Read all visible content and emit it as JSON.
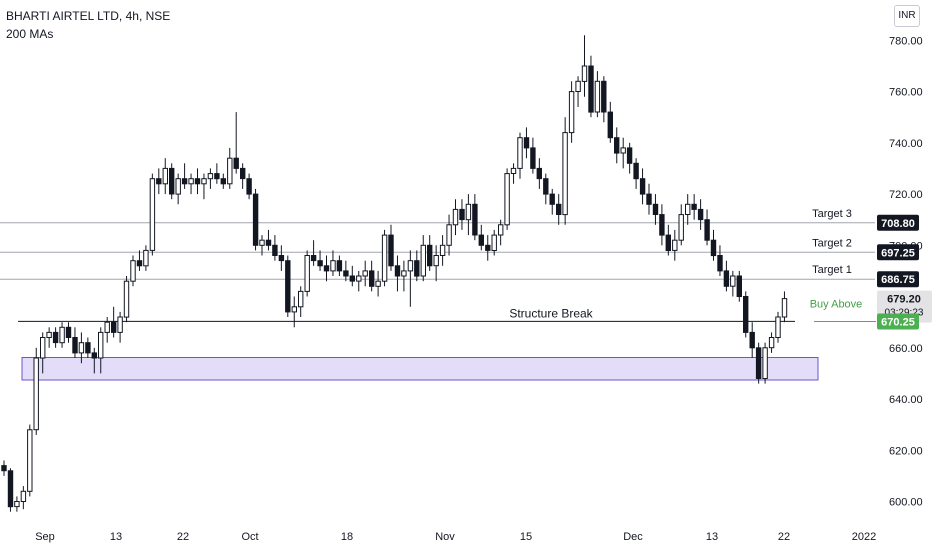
{
  "header": {
    "symbol_line": "BHARTI AIRTEL LTD, 4h, NSE",
    "indicator": "200 MAs"
  },
  "currency_button": "INR",
  "colors": {
    "up": "#ffffff",
    "down": "#131722",
    "wick": "#131722",
    "zone_fill": "#e3ddfa",
    "zone_stroke": "#6e54cf",
    "level_line": "#a3a6ae",
    "buy_line": "#4caf50",
    "buy_label": "#43a047",
    "price_badge": "#131722"
  },
  "chart_data": {
    "type": "candlestick",
    "title": "BHARTI AIRTEL LTD, 4h, NSE",
    "y_axis": {
      "ticks": [
        "600.00",
        "620.00",
        "640.00",
        "660.00",
        "680.00",
        "700.00",
        "720.00",
        "740.00",
        "760.00",
        "780.00"
      ],
      "ylim": [
        594,
        784
      ]
    },
    "x_axis": {
      "ticks": [
        "Sep",
        "13",
        "22",
        "Oct",
        "18",
        "Nov",
        "15",
        "Dec",
        "13",
        "22",
        "2022"
      ]
    },
    "grid": false,
    "levels": [
      {
        "name": "Target 3",
        "value": 708.8,
        "label": "708.80"
      },
      {
        "name": "Target 2",
        "value": 697.25,
        "label": "697.25"
      },
      {
        "name": "Target 1",
        "value": 686.75,
        "label": "686.75"
      }
    ],
    "structure_break": {
      "label": "Structure Break",
      "value": 670.3
    },
    "buy_above": {
      "label": "Buy Above",
      "value": 670.25,
      "badge": "670.25"
    },
    "last_price": {
      "value": "679.20",
      "countdown": "03:29:23"
    },
    "zone": {
      "from": 647.4,
      "to": 656.2
    },
    "candles": [
      [
        614,
        616,
        610,
        612
      ],
      [
        612,
        613,
        596,
        598
      ],
      [
        598,
        602,
        596,
        600
      ],
      [
        600,
        606,
        597,
        604
      ],
      [
        604,
        630,
        602,
        628
      ],
      [
        628,
        660,
        626,
        656
      ],
      [
        656,
        666,
        650,
        664
      ],
      [
        664,
        668,
        660,
        666
      ],
      [
        666,
        668,
        660,
        662
      ],
      [
        662,
        670,
        660,
        668
      ],
      [
        668,
        670,
        662,
        664
      ],
      [
        664,
        668,
        656,
        658
      ],
      [
        658,
        666,
        654,
        662
      ],
      [
        662,
        664,
        656,
        658
      ],
      [
        658,
        660,
        650,
        656
      ],
      [
        656,
        668,
        650,
        666
      ],
      [
        666,
        672,
        662,
        670
      ],
      [
        670,
        676,
        664,
        666
      ],
      [
        666,
        674,
        662,
        672
      ],
      [
        672,
        688,
        670,
        686
      ],
      [
        686,
        696,
        684,
        694
      ],
      [
        694,
        698,
        690,
        692
      ],
      [
        692,
        700,
        690,
        698
      ],
      [
        698,
        728,
        696,
        726
      ],
      [
        726,
        730,
        720,
        724
      ],
      [
        724,
        734,
        720,
        730
      ],
      [
        730,
        732,
        718,
        720
      ],
      [
        720,
        728,
        716,
        726
      ],
      [
        726,
        732,
        722,
        724
      ],
      [
        724,
        728,
        720,
        726
      ],
      [
        726,
        730,
        720,
        724
      ],
      [
        724,
        728,
        718,
        726
      ],
      [
        726,
        730,
        722,
        728
      ],
      [
        728,
        732,
        724,
        726
      ],
      [
        726,
        728,
        722,
        724
      ],
      [
        724,
        738,
        722,
        734
      ],
      [
        734,
        752,
        728,
        730
      ],
      [
        730,
        732,
        722,
        726
      ],
      [
        726,
        728,
        718,
        720
      ],
      [
        720,
        722,
        698,
        700
      ],
      [
        700,
        704,
        696,
        702
      ],
      [
        702,
        706,
        698,
        700
      ],
      [
        700,
        704,
        694,
        696
      ],
      [
        696,
        700,
        690,
        694
      ],
      [
        694,
        696,
        672,
        674
      ],
      [
        674,
        680,
        668,
        676
      ],
      [
        676,
        684,
        672,
        682
      ],
      [
        682,
        698,
        680,
        696
      ],
      [
        696,
        702,
        692,
        694
      ],
      [
        694,
        698,
        690,
        692
      ],
      [
        692,
        696,
        686,
        690
      ],
      [
        690,
        698,
        688,
        694
      ],
      [
        694,
        696,
        688,
        690
      ],
      [
        690,
        694,
        686,
        688
      ],
      [
        688,
        692,
        684,
        686
      ],
      [
        686,
        690,
        682,
        688
      ],
      [
        688,
        694,
        684,
        690
      ],
      [
        690,
        694,
        682,
        684
      ],
      [
        684,
        690,
        680,
        686
      ],
      [
        686,
        706,
        684,
        704
      ],
      [
        704,
        708,
        690,
        692
      ],
      [
        692,
        696,
        682,
        688
      ],
      [
        688,
        694,
        682,
        690
      ],
      [
        690,
        698,
        676,
        694
      ],
      [
        694,
        698,
        686,
        688
      ],
      [
        688,
        704,
        686,
        700
      ],
      [
        700,
        704,
        690,
        692
      ],
      [
        692,
        700,
        686,
        696
      ],
      [
        696,
        704,
        692,
        700
      ],
      [
        700,
        712,
        696,
        708
      ],
      [
        708,
        718,
        704,
        714
      ],
      [
        714,
        718,
        706,
        710
      ],
      [
        710,
        720,
        704,
        716
      ],
      [
        716,
        720,
        702,
        704
      ],
      [
        704,
        708,
        698,
        700
      ],
      [
        700,
        704,
        694,
        698
      ],
      [
        698,
        706,
        696,
        704
      ],
      [
        704,
        710,
        700,
        708
      ],
      [
        708,
        730,
        706,
        728
      ],
      [
        728,
        732,
        724,
        730
      ],
      [
        730,
        744,
        726,
        742
      ],
      [
        742,
        746,
        734,
        738
      ],
      [
        738,
        742,
        728,
        730
      ],
      [
        730,
        734,
        722,
        726
      ],
      [
        726,
        728,
        716,
        720
      ],
      [
        720,
        722,
        712,
        716
      ],
      [
        716,
        720,
        708,
        712
      ],
      [
        712,
        750,
        708,
        744
      ],
      [
        744,
        764,
        740,
        760
      ],
      [
        760,
        766,
        754,
        764
      ],
      [
        764,
        782,
        758,
        770
      ],
      [
        770,
        774,
        750,
        752
      ],
      [
        752,
        768,
        750,
        764
      ],
      [
        764,
        766,
        748,
        752
      ],
      [
        752,
        756,
        740,
        742
      ],
      [
        742,
        746,
        732,
        736
      ],
      [
        736,
        742,
        730,
        738
      ],
      [
        738,
        740,
        728,
        732
      ],
      [
        732,
        734,
        722,
        726
      ],
      [
        726,
        730,
        716,
        720
      ],
      [
        720,
        724,
        712,
        716
      ],
      [
        716,
        720,
        708,
        712
      ],
      [
        712,
        716,
        700,
        704
      ],
      [
        704,
        708,
        696,
        698
      ],
      [
        698,
        706,
        694,
        702
      ],
      [
        702,
        716,
        700,
        712
      ],
      [
        712,
        720,
        708,
        716
      ],
      [
        716,
        720,
        710,
        714
      ],
      [
        714,
        718,
        706,
        710
      ],
      [
        710,
        714,
        700,
        702
      ],
      [
        702,
        706,
        694,
        696
      ],
      [
        696,
        700,
        688,
        690
      ],
      [
        690,
        694,
        682,
        684
      ],
      [
        684,
        690,
        680,
        688
      ],
      [
        688,
        690,
        678,
        680
      ],
      [
        680,
        682,
        664,
        666
      ],
      [
        666,
        670,
        656,
        660
      ],
      [
        660,
        662,
        646,
        648
      ],
      [
        648,
        662,
        646,
        660
      ],
      [
        660,
        666,
        658,
        664
      ],
      [
        664,
        674,
        662,
        672
      ],
      [
        672,
        682,
        670,
        679.2
      ]
    ]
  }
}
